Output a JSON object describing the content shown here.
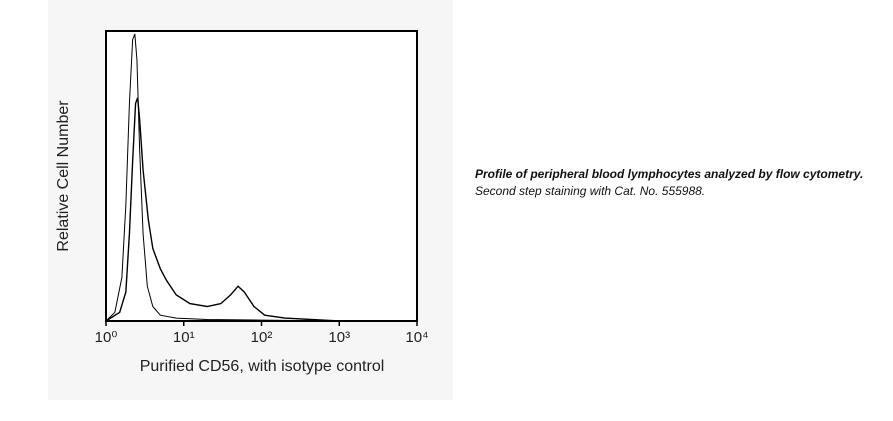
{
  "chart_data": {
    "type": "line",
    "xlabel": "Purified CD56, with isotype control",
    "ylabel": "Relative Cell Number",
    "xscale": "log",
    "xlim": [
      1,
      10000
    ],
    "ylim": [
      0,
      100
    ],
    "xticks": [
      {
        "value": 1,
        "label": "10⁰"
      },
      {
        "value": 10,
        "label": "10¹"
      },
      {
        "value": 100,
        "label": "10²"
      },
      {
        "value": 1000,
        "label": "10³"
      },
      {
        "value": 10000,
        "label": "10⁴"
      }
    ],
    "series": [
      {
        "name": "isotype control",
        "color": "#000000",
        "x": [
          1,
          1.3,
          1.6,
          1.8,
          2.0,
          2.2,
          2.35,
          2.5,
          2.7,
          3.0,
          3.4,
          4,
          5,
          8,
          20,
          100,
          1000
        ],
        "values": [
          0,
          3,
          15,
          40,
          75,
          97,
          99,
          90,
          60,
          30,
          12,
          5,
          2,
          1,
          0.5,
          0.3,
          0
        ]
      },
      {
        "name": "Purified CD56",
        "color": "#000000",
        "x": [
          1,
          1.5,
          1.8,
          2.0,
          2.2,
          2.4,
          2.55,
          2.7,
          3.0,
          3.5,
          4,
          5,
          6,
          8,
          12,
          20,
          30,
          40,
          50,
          60,
          80,
          110,
          200,
          1000
        ],
        "values": [
          0,
          3,
          10,
          30,
          55,
          75,
          77,
          70,
          52,
          35,
          25,
          18,
          14,
          9,
          6,
          5,
          6,
          9,
          12,
          10,
          5,
          2,
          1,
          0
        ]
      }
    ]
  },
  "caption": {
    "bold": "Profile of peripheral blood lymphocytes analyzed by flow cytometry.",
    "text": "Second step staining with Cat. No. 555988."
  }
}
